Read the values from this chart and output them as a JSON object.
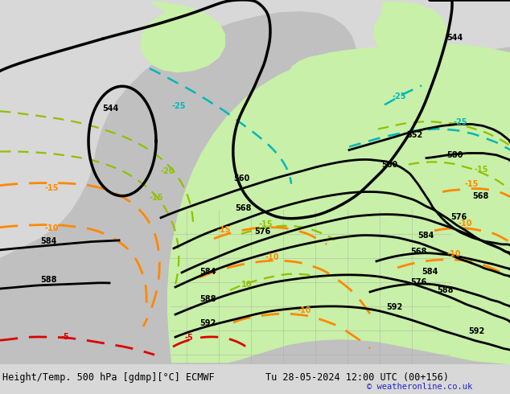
{
  "title_left": "Height/Temp. 500 hPa [gdmp][°C] ECMWF",
  "title_right": "Tu 28-05-2024 12:00 UTC (00+156)",
  "copyright": "© weatheronline.co.uk",
  "bg_color": "#d8d8d8",
  "land_color": "#c8c8c8",
  "green_color": "#c8f0a8",
  "figsize": [
    6.34,
    4.9
  ],
  "dpi": 100
}
